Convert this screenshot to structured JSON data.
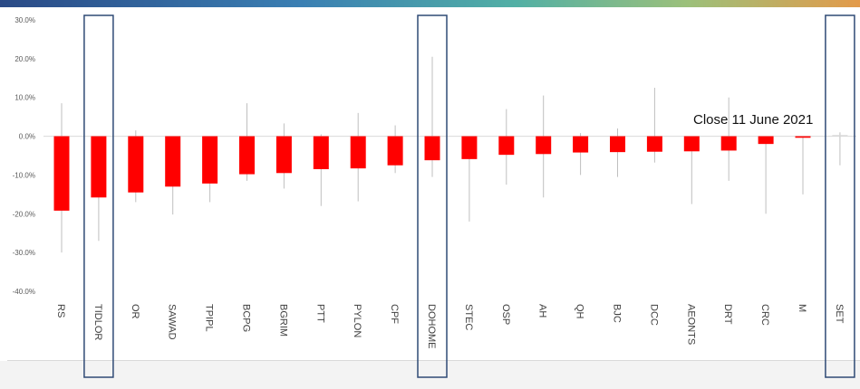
{
  "chart_data": {
    "type": "bar",
    "categories": [
      "RS",
      "TIDLOR",
      "OR",
      "SAWAD",
      "TPIPL",
      "BCPG",
      "BGRIM",
      "PTT",
      "PYLON",
      "CPF",
      "DOHOME",
      "STEC",
      "OSP",
      "AH",
      "QH",
      "BJC",
      "DCC",
      "AEONTS",
      "DRT",
      "CRC",
      "M",
      "SET"
    ],
    "values": [
      -19.2,
      -15.8,
      -14.5,
      -13.0,
      -12.2,
      -9.8,
      -9.5,
      -8.5,
      -8.3,
      -7.5,
      -6.2,
      -5.9,
      -4.8,
      -4.6,
      -4.2,
      -4.1,
      -4.0,
      -3.9,
      -3.7,
      -2.0,
      -0.4,
      0.3
    ],
    "range_high": [
      8.5,
      0.0,
      1.5,
      0.0,
      0.0,
      8.5,
      3.3,
      0.5,
      6.0,
      2.8,
      20.5,
      0.0,
      7.0,
      10.5,
      0.8,
      2.0,
      12.5,
      0.0,
      10.0,
      0.0,
      0.0,
      1.0
    ],
    "range_low": [
      -30.0,
      -27.0,
      -17.0,
      -20.2,
      -17.0,
      -11.5,
      -13.5,
      -18.0,
      -16.8,
      -9.5,
      -10.5,
      -22.0,
      -12.5,
      -15.8,
      -10.0,
      -10.5,
      -6.8,
      -17.5,
      -11.5,
      -20.0,
      -15.0,
      -7.5
    ],
    "ylim": [
      -40,
      30
    ],
    "yticks": [
      "30.0%",
      "20.0%",
      "10.0%",
      "0.0%",
      "-10.0%",
      "-20.0%",
      "-30.0%",
      "-40.0%"
    ],
    "highlighted": [
      "TIDLOR",
      "DOHOME",
      "SET"
    ],
    "annotation": "Close 11 June 2021",
    "bar_color": "#ff0000",
    "range_color": "#bfbfbf",
    "highlight_color": "#2f4a75",
    "grid": false
  }
}
